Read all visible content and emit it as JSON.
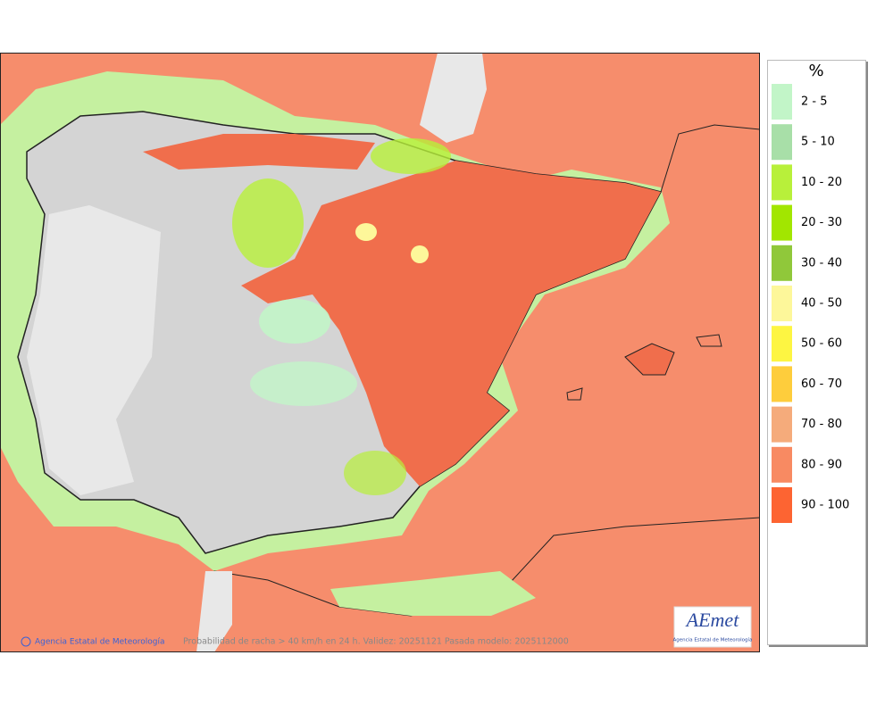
{
  "legend": {
    "title": "%",
    "items": [
      {
        "label": "2 - 5",
        "color": "#c2f5c8"
      },
      {
        "label": "5 - 10",
        "color": "#a8dfa8"
      },
      {
        "label": "10 - 20",
        "color": "#b8f03a"
      },
      {
        "label": "20 - 30",
        "color": "#a2e600"
      },
      {
        "label": "30 - 40",
        "color": "#90c83a"
      },
      {
        "label": "40 - 50",
        "color": "#fdf79a"
      },
      {
        "label": "50 - 60",
        "color": "#fdf542"
      },
      {
        "label": "60 - 70",
        "color": "#fecd3c"
      },
      {
        "label": "70 - 80",
        "color": "#f5ab7b"
      },
      {
        "label": "80 - 90",
        "color": "#f88a62"
      },
      {
        "label": "90 - 100",
        "color": "#fd6432"
      }
    ]
  },
  "footer": {
    "credit": "Agencia Estatal de Meteorología",
    "caption": "Probabilidad de racha > 40 km/h en 24 h. Validez: 20251121 Pasada modelo: 2025112000"
  },
  "logo": {
    "name": "AEmet",
    "subtitle": "Agencia Estatal de Meteorología"
  }
}
